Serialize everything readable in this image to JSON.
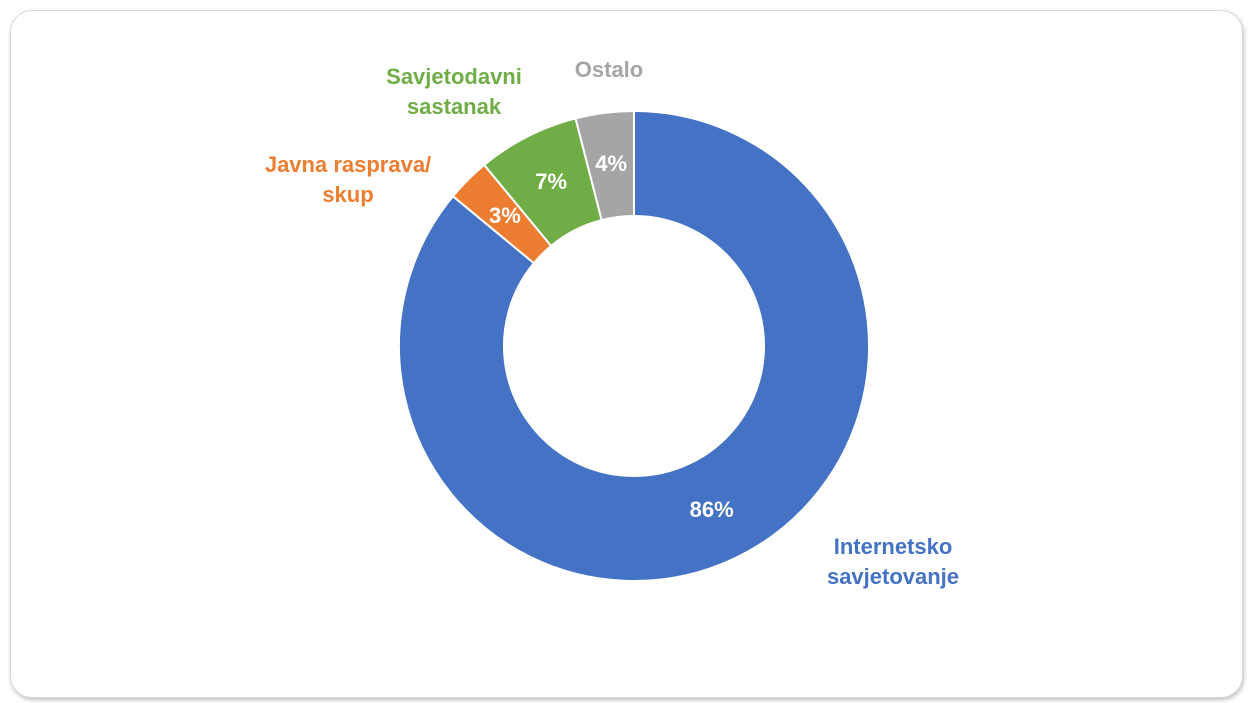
{
  "chart_data": {
    "type": "donut",
    "categories": [
      "Internetsko savjetovanje",
      "Javna rasprava/ skup",
      "Savjetodavni sastanak",
      "Ostalo"
    ],
    "values": [
      86,
      3,
      7,
      4
    ],
    "value_labels": [
      "86%",
      "3%",
      "7%",
      "4%"
    ],
    "colors": [
      "#4472c4",
      "#ed7d31",
      "#70ad47",
      "#a5a5a5"
    ]
  }
}
